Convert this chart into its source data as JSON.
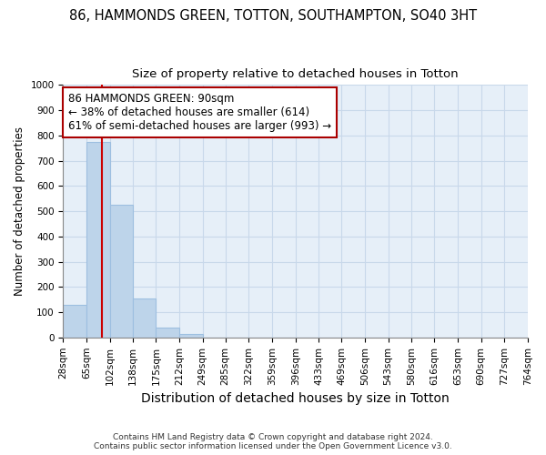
{
  "title1": "86, HAMMONDS GREEN, TOTTON, SOUTHAMPTON, SO40 3HT",
  "title2": "Size of property relative to detached houses in Totton",
  "xlabel": "Distribution of detached houses by size in Totton",
  "ylabel": "Number of detached properties",
  "footer1": "Contains HM Land Registry data © Crown copyright and database right 2024.",
  "footer2": "Contains public sector information licensed under the Open Government Licence v3.0.",
  "bar_edges": [
    28,
    65,
    102,
    138,
    175,
    212,
    249,
    285,
    322,
    359,
    396,
    433,
    469,
    506,
    543,
    580,
    616,
    653,
    690,
    727,
    764
  ],
  "bar_heights": [
    130,
    775,
    525,
    155,
    40,
    15,
    0,
    0,
    0,
    0,
    0,
    0,
    0,
    0,
    0,
    0,
    0,
    0,
    0,
    0
  ],
  "bar_color": "#bdd4ea",
  "bar_edgecolor": "#9dbfe0",
  "grid_color": "#c8d8ea",
  "bg_color": "#e6eff8",
  "property_sqm": 90,
  "vline_color": "#cc0000",
  "annotation_text": "86 HAMMONDS GREEN: 90sqm\n← 38% of detached houses are smaller (614)\n61% of semi-detached houses are larger (993) →",
  "annotation_box_edgecolor": "#aa0000",
  "annotation_box_facecolor": "#ffffff",
  "ylim": [
    0,
    1000
  ],
  "yticks": [
    0,
    100,
    200,
    300,
    400,
    500,
    600,
    700,
    800,
    900,
    1000
  ],
  "title1_fontsize": 10.5,
  "title2_fontsize": 9.5,
  "xlabel_fontsize": 10,
  "ylabel_fontsize": 8.5,
  "tick_fontsize": 7.5,
  "annotation_fontsize": 8.5
}
